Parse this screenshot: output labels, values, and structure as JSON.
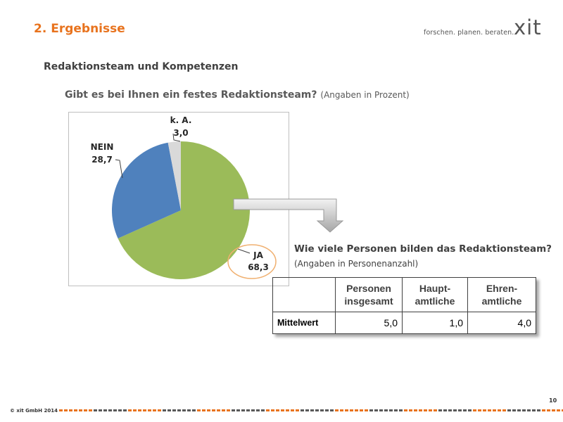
{
  "header": {
    "section_title": "2. Ergebnisse",
    "tagline": "forschen. planen. beraten.",
    "logo_text": "xit"
  },
  "subtitle": "Redaktionsteam und Kompetenzen",
  "question1": {
    "text": "Gibt es bei Ihnen ein festes Redaktionsteam?",
    "note": "(Angaben in Prozent)"
  },
  "chart_data": {
    "type": "pie",
    "title": "",
    "slices": [
      {
        "label": "JA",
        "value": 68.3,
        "value_text": "68,3",
        "color": "#9bbb59"
      },
      {
        "label": "NEIN",
        "value": 28.7,
        "value_text": "28,7",
        "color": "#4f81bd"
      },
      {
        "label": "k. A.",
        "value": 3.0,
        "value_text": "3,0",
        "color": "#d9d9d9"
      }
    ],
    "highlight_color": "#f0b070"
  },
  "question2": {
    "text": "Wie viele Personen bilden das Redaktionsteam?",
    "note": "(Angaben in Personenanzahl)"
  },
  "table": {
    "headers": [
      "",
      "Personen insgesamt",
      "Haupt-amtliche",
      "Ehren-amtliche"
    ],
    "header_lines": [
      [
        "",
        ""
      ],
      [
        "Personen",
        "insgesamt"
      ],
      [
        "Haupt-",
        "amtliche"
      ],
      [
        "Ehren-",
        "amtliche"
      ]
    ],
    "rows": [
      {
        "label": "Mittelwert",
        "values": [
          "5,0",
          "1,0",
          "4,0"
        ]
      }
    ]
  },
  "footer": {
    "copyright": "© xit GmbH 2014",
    "page_number": "10",
    "dash_colors": [
      "#e8731e",
      "#595959"
    ]
  }
}
